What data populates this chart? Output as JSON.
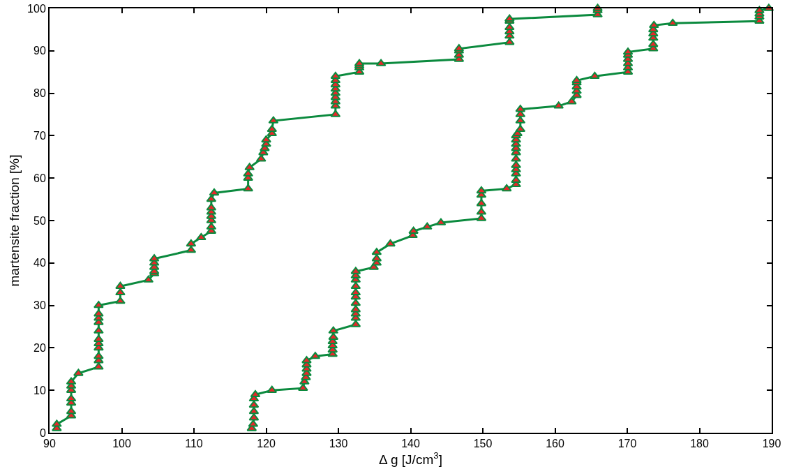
{
  "chart_data": {
    "type": "line",
    "xlabel": "Δ g [J/cm$^{3}$]",
    "ylabel": "martensite fraction [%]",
    "xlim": [
      90,
      190
    ],
    "ylim": [
      0,
      100
    ],
    "xticks": [
      90,
      100,
      110,
      120,
      130,
      140,
      150,
      160,
      170,
      180,
      190
    ],
    "yticks": [
      0,
      10,
      20,
      30,
      40,
      50,
      60,
      70,
      80,
      90,
      100
    ],
    "grid": false,
    "marker": "triangle",
    "line_style": "solid",
    "series": [
      {
        "color": "#0b8a3e",
        "x": [
          91,
          91,
          93,
          93,
          93,
          93,
          93,
          93,
          93,
          94,
          96.8,
          96.8,
          96.8,
          96.8,
          96.8,
          96.8,
          96.8,
          96.8,
          96.8,
          96.8,
          96.8,
          99.8,
          99.8,
          99.8,
          103.7,
          104.5,
          104.5,
          104.5,
          104.5,
          104.5,
          109.6,
          109.6,
          111,
          112.4,
          112.4,
          112.4,
          112.4,
          112.4,
          112.4,
          112.4,
          112.8,
          117.5,
          117.5,
          117.5,
          117.7,
          119.3,
          119.6,
          119.8,
          120,
          120,
          120.8,
          120.8,
          121,
          129.6,
          129.6,
          129.6,
          129.6,
          129.6,
          129.6,
          129.6,
          129.6,
          129.6,
          132.9,
          132.9,
          132.9,
          132.9,
          135.9,
          146.7,
          146.7,
          146.7,
          146.7,
          153.7,
          153.7,
          153.7,
          153.7,
          153.7,
          153.7,
          165.9,
          165.9,
          165.9
        ],
        "values": [
          1,
          2,
          4,
          5,
          7,
          8,
          10,
          11,
          12,
          14,
          15.5,
          17,
          18,
          20,
          21,
          22,
          24,
          26,
          27,
          28,
          30,
          31,
          33,
          34.5,
          36,
          37.5,
          38,
          39,
          40,
          41,
          43,
          44.5,
          46,
          47.5,
          48.5,
          50,
          51,
          52,
          53,
          55,
          56.5,
          57.5,
          60,
          61,
          62.5,
          64.5,
          66,
          67,
          68,
          69,
          70.5,
          71.5,
          73.5,
          75,
          77,
          78,
          79,
          80,
          81,
          82,
          83,
          84,
          85,
          86,
          86.5,
          87,
          87,
          88,
          89,
          90,
          90.5,
          92,
          93.5,
          94.5,
          95.5,
          97,
          97.5,
          98.5,
          99.5,
          100
        ]
      },
      {
        "color": "#0b8a3e",
        "x": [
          118,
          118.2,
          118.3,
          118.3,
          118.3,
          118.3,
          118.5,
          120.8,
          125.1,
          125.3,
          125.5,
          125.6,
          125.6,
          125.6,
          125.6,
          126.8,
          129.2,
          129.2,
          129.2,
          129.2,
          129.3,
          129.3,
          132.4,
          132.4,
          132.4,
          132.4,
          132.4,
          132.4,
          132.4,
          132.4,
          132.4,
          132.4,
          132.4,
          134.9,
          135.3,
          135.3,
          135.3,
          137.2,
          140.3,
          140.4,
          142.3,
          144.2,
          149.8,
          149.8,
          149.8,
          149.8,
          149.8,
          153.3,
          154.6,
          154.6,
          154.6,
          154.6,
          154.6,
          154.6,
          154.6,
          154.6,
          154.6,
          154.6,
          154.6,
          154.8,
          155.2,
          155.2,
          155.2,
          155.2,
          160.5,
          162.3,
          163,
          163,
          163,
          163,
          163,
          165.5,
          170.1,
          170.1,
          170.1,
          170.1,
          170.1,
          170.1,
          173.6,
          173.6,
          173.6,
          173.6,
          173.6,
          173.7,
          176.3,
          188.3,
          188.3,
          188.3,
          188.3,
          189.6
        ],
        "values": [
          1,
          2,
          3.5,
          5,
          6.5,
          8,
          9,
          10,
          10.5,
          12,
          13,
          14,
          15,
          16,
          17,
          18,
          18.5,
          19.5,
          20.5,
          21.5,
          22.5,
          24,
          25.5,
          27,
          28,
          29,
          30.5,
          32,
          33,
          34.5,
          36,
          37,
          38,
          39,
          40,
          41,
          42.5,
          44.5,
          46.5,
          47.5,
          48.5,
          49.5,
          50.5,
          52,
          54,
          56,
          57,
          57.5,
          58.5,
          59.5,
          61,
          62,
          63,
          64.5,
          66,
          67,
          68,
          69,
          70,
          70.5,
          71.5,
          73.5,
          75,
          76.2,
          77,
          78,
          79.5,
          80.5,
          81.5,
          82.5,
          83,
          84,
          85,
          86,
          87,
          88,
          89,
          89.7,
          90.5,
          91.5,
          93,
          94,
          95,
          96,
          96.5,
          97,
          98,
          98.7,
          99.5,
          100
        ]
      }
    ]
  }
}
